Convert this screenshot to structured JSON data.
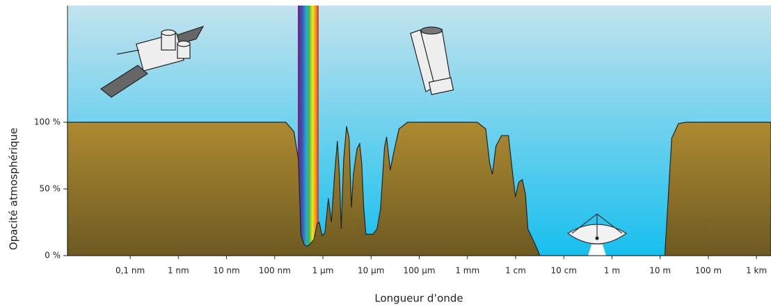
{
  "chart_data": {
    "type": "area",
    "x_label": "Longueur d’onde",
    "y_label": "Opacité atmosphérique",
    "x_scale": "log",
    "color": "#a9842e",
    "x": [
      5e-12,
      1.7e-07,
      2.5e-07,
      3.1e-07,
      3.5e-07,
      4.1e-07,
      4.9e-07,
      6.5e-07,
      7.6e-07,
      8.4e-07,
      9.6e-07,
      1.1e-06,
      1.3e-06,
      1.5e-06,
      1.75e-06,
      2e-06,
      2.2e-06,
      2.4e-06,
      2.7e-06,
      3.1e-06,
      3.5e-06,
      3.9e-06,
      4.3e-06,
      5.1e-06,
      5.8e-06,
      6.4e-06,
      7e-06,
      7.8e-06,
      1.09e-05,
      1.33e-05,
      1.57e-05,
      1.9e-05,
      2.1e-05,
      2.5e-05,
      2.9e-05,
      3.8e-05,
      5.7e-05,
      0.0016,
      0.0024,
      0.0029,
      0.0033,
      0.0039,
      0.0051,
      0.0071,
      0.0084,
      0.0099,
      0.0116,
      0.0138,
      0.016,
      0.018,
      0.025,
      0.032,
      12.5,
      17.4,
      24,
      34,
      2000
    ],
    "values": [
      100,
      100,
      93,
      72,
      15,
      8,
      7,
      12,
      24,
      25,
      15,
      17,
      43,
      25,
      61,
      86,
      61,
      20,
      72,
      97,
      88,
      36,
      61,
      80,
      84,
      69,
      37,
      16,
      16,
      20,
      35,
      81,
      89,
      64,
      76,
      95,
      100,
      100,
      95,
      69,
      61,
      82,
      90,
      90,
      66,
      44,
      55,
      57,
      46,
      20,
      9,
      0,
      0,
      88,
      99,
      100,
      100
    ],
    "xlim": [
      5e-12,
      2000
    ],
    "xticks": [
      {
        "value": 1e-10,
        "label": "0,1 nm"
      },
      {
        "value": 1e-09,
        "label": "1 nm"
      },
      {
        "value": 1e-08,
        "label": "10 nm"
      },
      {
        "value": 1e-07,
        "label": "100 nm"
      },
      {
        "value": 1e-06,
        "label": "1 µm"
      },
      {
        "value": 1e-05,
        "label": "10 µm"
      },
      {
        "value": 0.0001,
        "label": "100 µm"
      },
      {
        "value": 0.001,
        "label": "1 mm"
      },
      {
        "value": 0.01,
        "label": "1 cm"
      },
      {
        "value": 0.1,
        "label": "10 cm"
      },
      {
        "value": 1,
        "label": "1 m"
      },
      {
        "value": 10,
        "label": "10 m"
      },
      {
        "value": 100,
        "label": "100 m"
      },
      {
        "value": 1000,
        "label": "1 km"
      }
    ],
    "ylim": [
      0,
      187.5
    ],
    "yticks": [
      {
        "value": 0,
        "label": "0 %"
      },
      {
        "value": 50,
        "label": "50 %"
      },
      {
        "value": 100,
        "label": "100 %"
      }
    ]
  }
}
